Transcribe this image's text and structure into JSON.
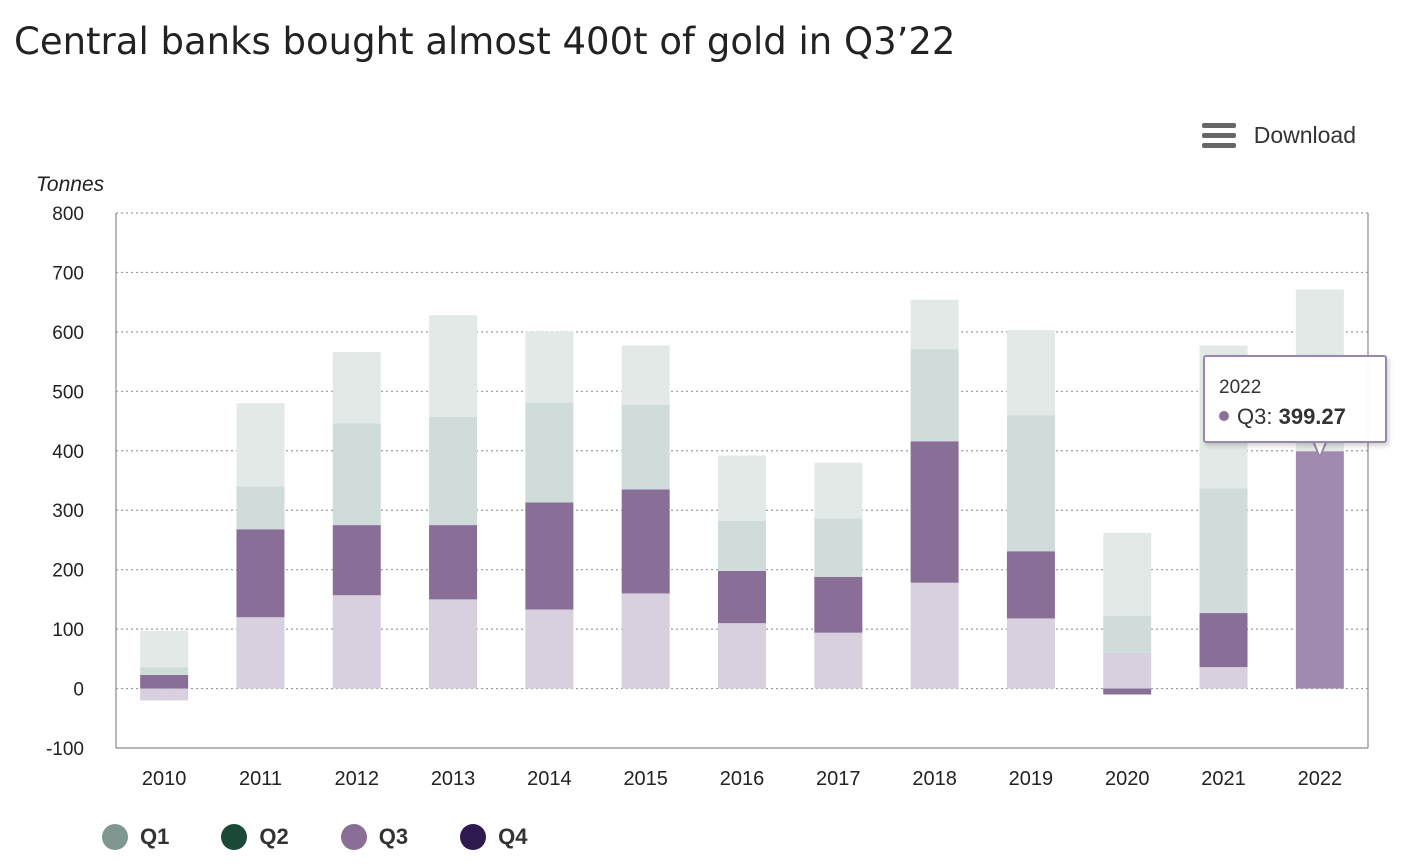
{
  "header": {
    "title": "Central banks bought almost 400t of gold in Q3’22",
    "download_label": "Download"
  },
  "chart_data": {
    "type": "bar",
    "stacked": true,
    "title": "Central banks bought almost 400t of gold in Q3’22",
    "ylabel": "Tonnes",
    "xlabel": "",
    "ylim": [
      -100,
      800
    ],
    "yticks": [
      800,
      700,
      600,
      500,
      400,
      300,
      200,
      100,
      0,
      -100
    ],
    "grid": true,
    "legend_position": "bottom-left",
    "categories": [
      "2010",
      "2011",
      "2012",
      "2013",
      "2014",
      "2015",
      "2016",
      "2017",
      "2018",
      "2019",
      "2020",
      "2021",
      "2022"
    ],
    "series": [
      {
        "name": "Q1",
        "color": "#7f9790",
        "values": [
          -20,
          120,
          157,
          150,
          133,
          160,
          110,
          94,
          178,
          118,
          60,
          36,
          0
        ]
      },
      {
        "name": "Q2",
        "color": "#1b4937",
        "values": [
          23,
          148,
          118,
          125,
          180,
          175,
          88,
          94,
          238,
          113,
          -10,
          91,
          0
        ]
      },
      {
        "name": "Q3",
        "color": "#896f97",
        "values": [
          13,
          72,
          171,
          182,
          168,
          142,
          84,
          98,
          155,
          229,
          62,
          210,
          399.27
        ]
      },
      {
        "name": "Q4",
        "color": "#2e1a4f",
        "values": [
          61,
          140,
          120,
          171,
          120,
          100,
          110,
          94,
          83,
          143,
          140,
          240,
          272
        ]
      }
    ],
    "highlight": {
      "category": "2022",
      "series": "Q3",
      "value": "399.27"
    }
  },
  "tooltip": {
    "year": "2022",
    "series": "Q3",
    "value": "399.27",
    "dot_color": "#896f97"
  },
  "legend": [
    {
      "label": "Q1",
      "color": "#7f9790"
    },
    {
      "label": "Q2",
      "color": "#1b4937"
    },
    {
      "label": "Q3",
      "color": "#896f97"
    },
    {
      "label": "Q4",
      "color": "#2e1a4f"
    }
  ]
}
